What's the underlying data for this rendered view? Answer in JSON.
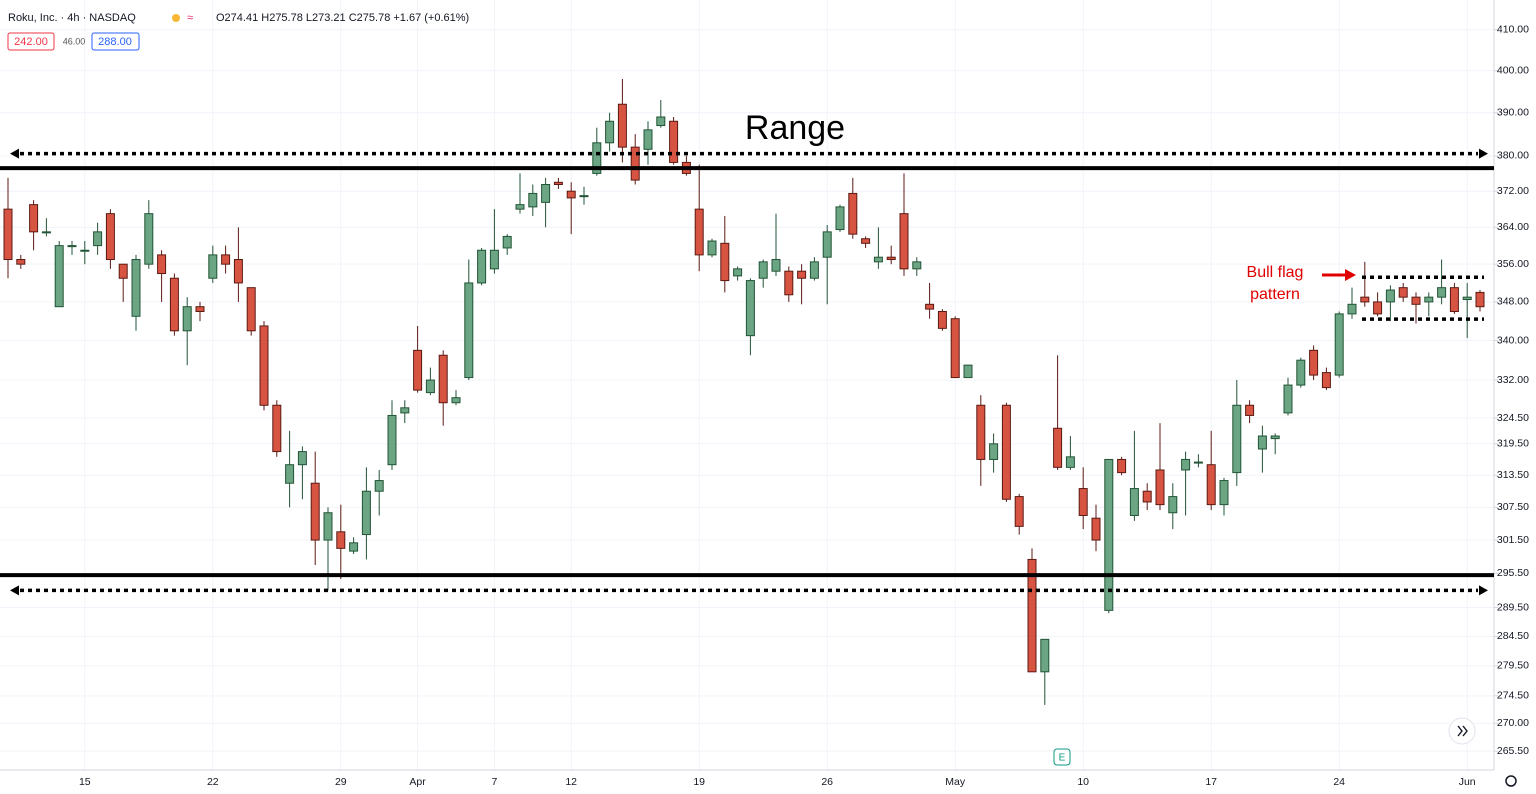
{
  "chart_data": {
    "type": "candlestick",
    "title": "Roku, Inc. · 4h · NASDAQ",
    "ohlc_text": "O274.41 H275.78 L273.21 C275.78 +1.67 (+0.61%)",
    "buttons": [
      "242.00",
      "46.00",
      "288.00"
    ],
    "annotations": {
      "range_label": "Range",
      "flag_label": [
        "Bull flag",
        "pattern"
      ]
    },
    "range_lines": [
      {
        "value": 377.2,
        "dashed": false
      },
      {
        "value": 380.5,
        "dashed": true
      },
      {
        "value": 295.2,
        "dashed": false
      },
      {
        "value": 292.5,
        "dashed": true
      }
    ],
    "flag_lines": [
      {
        "value": 353.2,
        "dashed": true
      },
      {
        "value": 344.4,
        "dashed": true
      }
    ],
    "up_color": "#6ba583",
    "up_border": "#225437",
    "down_color": "#d75442",
    "down_border": "#5b1a13",
    "log_scale": true,
    "grid": true,
    "ylim": [
      263.3,
      417.4
    ],
    "yticks": [
      {
        "value": 410,
        "label": "410.00"
      },
      {
        "value": 400,
        "label": "400.00"
      },
      {
        "value": 390,
        "label": "390.00"
      },
      {
        "value": 380,
        "label": "380.00"
      },
      {
        "value": 372,
        "label": "372.00"
      },
      {
        "value": 364,
        "label": "364.00"
      },
      {
        "value": 356,
        "label": "356.00"
      },
      {
        "value": 348,
        "label": "348.00"
      },
      {
        "value": 340,
        "label": "340.00"
      },
      {
        "value": 332,
        "label": "332.00"
      },
      {
        "value": 324.5,
        "label": "324.50"
      },
      {
        "value": 319.5,
        "label": "319.50"
      },
      {
        "value": 313.5,
        "label": "313.50"
      },
      {
        "value": 307.5,
        "label": "307.50"
      },
      {
        "value": 301.5,
        "label": "301.50"
      },
      {
        "value": 295.5,
        "label": "295.50"
      },
      {
        "value": 289.5,
        "label": "289.50"
      },
      {
        "value": 284.5,
        "label": "284.50"
      },
      {
        "value": 279.5,
        "label": "279.50"
      },
      {
        "value": 274.5,
        "label": "274.50"
      },
      {
        "value": 270,
        "label": "270.00"
      },
      {
        "value": 265.5,
        "label": "265.50"
      }
    ],
    "categories": [
      null,
      null,
      null,
      null,
      null,
      null,
      "15",
      null,
      null,
      null,
      null,
      null,
      null,
      null,
      null,
      null,
      "22",
      null,
      null,
      null,
      null,
      null,
      null,
      null,
      null,
      null,
      "29",
      null,
      null,
      null,
      null,
      null,
      "Apr",
      null,
      null,
      null,
      null,
      null,
      "7",
      null,
      null,
      null,
      null,
      null,
      "12",
      null,
      null,
      null,
      null,
      null,
      null,
      null,
      null,
      null,
      "19",
      null,
      null,
      null,
      null,
      null,
      null,
      null,
      null,
      null,
      "26",
      null,
      null,
      null,
      null,
      null,
      null,
      null,
      null,
      null,
      "May",
      null,
      null,
      null,
      null,
      null,
      null,
      null,
      null,
      null,
      "10",
      null,
      null,
      null,
      null,
      null,
      null,
      null,
      null,
      null,
      "17",
      null,
      null,
      null,
      null,
      null,
      null,
      null,
      null,
      null,
      "24",
      null,
      null,
      null,
      null,
      null,
      null,
      null,
      null,
      null,
      "Jun",
      null
    ],
    "open": [
      368,
      357,
      369,
      363,
      347,
      360,
      359,
      360,
      367,
      356,
      345,
      356,
      358,
      353,
      342,
      347,
      353,
      358,
      357,
      351,
      343,
      327,
      312,
      315.5,
      312,
      301.5,
      303,
      299.5,
      302.5,
      310.5,
      315.5,
      325.5,
      338,
      329.5,
      337,
      327.5,
      332.5,
      352,
      355,
      359.5,
      368,
      368.5,
      369.5,
      374,
      372,
      371,
      376,
      383,
      392,
      382,
      381.5,
      387,
      388,
      378.5,
      368,
      358,
      360.5,
      353.5,
      341,
      353,
      354.5,
      354.5,
      354.5,
      353,
      357.5,
      363.5,
      371.5,
      361.5,
      356.5,
      357.5,
      367,
      355,
      347.5,
      346,
      344.5,
      332.5,
      327,
      316.5,
      327,
      309.5,
      298,
      278.5,
      322.5,
      315,
      311,
      305.5,
      289,
      316.5,
      306,
      310.5,
      314.5,
      306.5,
      314.5,
      316,
      315.5,
      308,
      314,
      327,
      318.5,
      320.5,
      325.5,
      331,
      338,
      333.5,
      333,
      345.5,
      349,
      348,
      348,
      351,
      349,
      348,
      349,
      351,
      348.5,
      350
    ],
    "high": [
      375,
      358,
      370,
      366,
      361,
      361,
      361,
      365,
      368,
      356,
      358,
      370,
      359,
      354,
      349,
      348,
      360,
      360,
      364,
      351,
      344,
      328,
      322,
      319,
      318,
      307.5,
      308,
      302,
      315,
      314.5,
      328,
      328,
      343,
      334.5,
      338,
      330,
      357,
      359.5,
      368,
      362.5,
      376,
      373.5,
      375,
      375,
      374,
      373,
      386.5,
      390,
      398,
      385,
      388,
      393,
      389,
      380,
      378,
      361.5,
      366.5,
      355.5,
      353,
      357,
      367,
      355.5,
      356,
      357.5,
      364.5,
      369,
      375,
      362,
      364,
      360,
      376,
      357.5,
      352,
      346.5,
      345,
      335,
      329,
      321.5,
      327.5,
      310,
      300,
      284,
      337,
      321,
      315,
      308,
      316.5,
      317,
      322,
      312,
      323.5,
      312,
      318,
      317.5,
      322,
      313,
      332,
      328,
      323,
      321.5,
      332.5,
      336.5,
      339,
      334.5,
      346,
      351,
      356.5,
      350,
      351.5,
      352,
      350,
      350,
      357,
      352,
      352,
      350.5
    ],
    "low": [
      353,
      355,
      359,
      362,
      347,
      358,
      356,
      358,
      355,
      348,
      342,
      355,
      348,
      341,
      335,
      344,
      352,
      354,
      348,
      341,
      326,
      317,
      307.5,
      309,
      297,
      292.5,
      294.5,
      299,
      298,
      306,
      314.5,
      323.5,
      329.5,
      329,
      323,
      327,
      332,
      351.5,
      354,
      358,
      367,
      366.5,
      364,
      372.5,
      362.5,
      369,
      375.5,
      381,
      378.5,
      373.5,
      378,
      386.5,
      378,
      375.5,
      354.5,
      357.5,
      350,
      352.5,
      337,
      351,
      353.5,
      348,
      347.5,
      352.5,
      347.5,
      363,
      361.5,
      359.5,
      355,
      356,
      353.5,
      353.5,
      344.5,
      342,
      332.5,
      332.5,
      311.5,
      314,
      308.5,
      302.5,
      278.5,
      273,
      314.5,
      314.5,
      303.5,
      299.5,
      288.5,
      313.5,
      305,
      307,
      307,
      303.5,
      306,
      315,
      307,
      306,
      311.5,
      323.5,
      314,
      317.5,
      325,
      330.5,
      332,
      330,
      332.5,
      344.5,
      347,
      345,
      344,
      348,
      343.5,
      345,
      347.5,
      345.5,
      340.5,
      346
    ],
    "close": [
      357,
      356,
      363,
      363,
      360,
      360,
      359,
      363,
      357,
      353,
      357,
      367,
      354,
      342,
      347,
      346,
      358,
      356,
      352,
      342,
      327,
      318,
      315.5,
      318,
      301.5,
      306.5,
      300,
      301,
      310.5,
      312.5,
      325,
      326.5,
      330,
      332,
      327.5,
      328.5,
      352,
      359,
      359,
      362,
      369,
      371.5,
      373.5,
      373.5,
      370.5,
      371,
      383,
      388,
      382,
      374.5,
      386,
      389,
      378.5,
      376,
      358,
      361,
      352.5,
      355,
      352.5,
      356.5,
      357,
      349.5,
      353,
      356.5,
      363,
      368.5,
      362.5,
      360.5,
      357.5,
      357,
      355,
      356.5,
      346.5,
      342.5,
      332.5,
      335,
      316.5,
      319.5,
      309,
      304,
      278.5,
      284,
      315,
      317,
      306,
      301.5,
      316.5,
      314,
      311,
      308.5,
      308,
      309.5,
      316.5,
      316,
      308,
      312.5,
      327,
      325,
      321,
      321,
      331,
      336,
      333,
      330.5,
      345.5,
      347.5,
      348,
      345.5,
      350.5,
      349,
      347.5,
      349,
      351,
      346,
      349,
      347
    ]
  }
}
